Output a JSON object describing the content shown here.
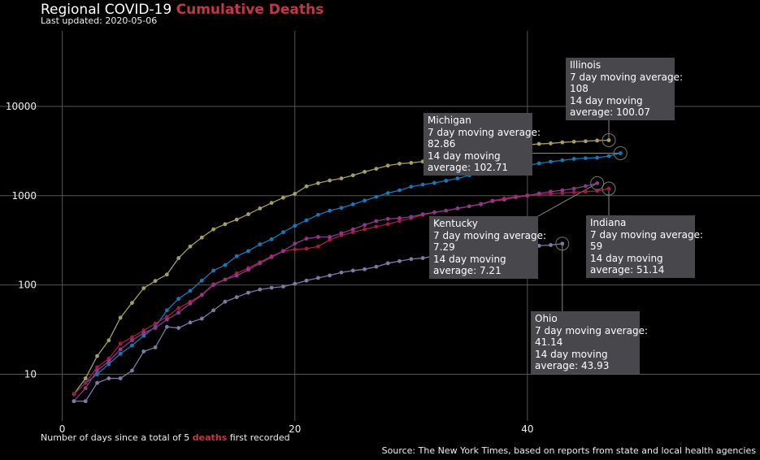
{
  "title": {
    "prefix": "Regional  COVID-19",
    "accent": "Cumulative Deaths"
  },
  "subtitle": "Last updated: 2020-05-06",
  "x_caption": {
    "before": "Number of days since a total of 5 ",
    "accent": "deaths",
    "after": " first recorded"
  },
  "source": "Source: The New York Times, based on reports from state and local health agencies",
  "colors": {
    "accent": "#c0394b",
    "Illinois": "#a3a065",
    "Michigan": "#1a77b5",
    "Indiana": "#a01c43",
    "Kentucky": "#8b3a87",
    "Ohio": "#7d7aa3"
  },
  "tooltips": [
    {
      "state": "Illinois",
      "lines": [
        "Illinois",
        "7 day moving average:",
        "108",
        "14 day moving",
        "average: 100.07"
      ]
    },
    {
      "state": "Michigan",
      "lines": [
        "Michigan",
        "7 day moving average:",
        "82.86",
        "14 day moving",
        "average: 102.71"
      ]
    },
    {
      "state": "Kentucky",
      "lines": [
        "Kentucky",
        "7 day moving average:",
        "7.29",
        "14 day moving",
        "average: 7.21"
      ]
    },
    {
      "state": "Indiana",
      "lines": [
        "Indiana",
        "7 day moving average:",
        "59",
        "14 day moving",
        "average: 51.14"
      ]
    },
    {
      "state": "Ohio",
      "lines": [
        "Ohio",
        "7 day moving average:",
        "41.14",
        "14 day moving",
        "average: 43.93"
      ]
    }
  ],
  "chart_data": {
    "type": "line",
    "title": "Regional  COVID-19  Cumulative Deaths",
    "xlabel": "Number of days since a total of 5 deaths first recorded",
    "ylabel": "",
    "y_scale": "log10",
    "xlim": [
      -2,
      60
    ],
    "ylim": [
      3,
      70000
    ],
    "x_ticks": [
      0,
      20,
      40
    ],
    "y_ticks": [
      10,
      100,
      1000,
      10000
    ],
    "grid": true,
    "series": [
      {
        "name": "Illinois",
        "x": [
          1,
          2,
          3,
          4,
          5,
          6,
          7,
          8,
          9,
          10,
          11,
          12,
          13,
          14,
          15,
          16,
          17,
          18,
          19,
          20,
          21,
          22,
          23,
          24,
          25,
          26,
          27,
          28,
          29,
          30,
          31,
          32,
          33,
          34,
          35,
          36,
          37,
          38,
          39,
          40,
          41,
          42,
          43,
          44,
          45,
          46,
          47
        ],
        "values": [
          6,
          9,
          16,
          24,
          43,
          63,
          92,
          111,
          131,
          200,
          270,
          340,
          420,
          480,
          540,
          620,
          720,
          830,
          950,
          1050,
          1270,
          1380,
          1480,
          1560,
          1690,
          1850,
          2000,
          2170,
          2280,
          2330,
          2410,
          2470,
          2620,
          2800,
          2950,
          3100,
          3250,
          3400,
          3550,
          3700,
          3800,
          3850,
          3950,
          4020,
          4070,
          4140,
          4180
        ]
      },
      {
        "name": "Michigan",
        "x": [
          1,
          2,
          3,
          4,
          5,
          6,
          7,
          8,
          9,
          10,
          11,
          12,
          13,
          14,
          15,
          16,
          17,
          18,
          19,
          20,
          21,
          22,
          23,
          24,
          25,
          26,
          27,
          28,
          29,
          30,
          31,
          32,
          33,
          34,
          35,
          36,
          37,
          38,
          39,
          40,
          41,
          42,
          43,
          44,
          45,
          46,
          47,
          48
        ],
        "values": [
          6,
          8,
          10,
          13,
          17,
          21,
          27,
          34,
          52,
          70,
          86,
          112,
          145,
          167,
          210,
          240,
          285,
          325,
          390,
          460,
          530,
          610,
          680,
          730,
          800,
          880,
          970,
          1070,
          1150,
          1260,
          1330,
          1390,
          1470,
          1560,
          1690,
          1770,
          1890,
          1990,
          2080,
          2180,
          2300,
          2400,
          2490,
          2580,
          2630,
          2660,
          2780,
          2990
        ]
      },
      {
        "name": "Indiana",
        "x": [
          1,
          2,
          3,
          4,
          5,
          6,
          7,
          8,
          9,
          10,
          11,
          12,
          13,
          14,
          15,
          16,
          17,
          18,
          19,
          20,
          21,
          22,
          23,
          24,
          25,
          26,
          27,
          28,
          29,
          30,
          31,
          32,
          33,
          34,
          35,
          36,
          37,
          38,
          39,
          40,
          41,
          42,
          43,
          44,
          45,
          46,
          47
        ],
        "values": [
          6,
          8,
          12,
          15,
          22,
          26,
          31,
          37,
          44,
          55,
          65,
          78,
          102,
          115,
          135,
          155,
          180,
          210,
          240,
          250,
          255,
          270,
          320,
          360,
          390,
          420,
          450,
          480,
          520,
          560,
          610,
          650,
          680,
          720,
          760,
          810,
          880,
          930,
          980,
          1010,
          1030,
          1050,
          1070,
          1090,
          1110,
          1130,
          1200
        ]
      },
      {
        "name": "Kentucky",
        "x": [
          1,
          2,
          3,
          4,
          5,
          6,
          7,
          8,
          9,
          10,
          11,
          12,
          13,
          14,
          15,
          16,
          17,
          18,
          19,
          20,
          21,
          22,
          23,
          24,
          25,
          26,
          27,
          28,
          29,
          30,
          31,
          32,
          33,
          34,
          35,
          36,
          37,
          38,
          39,
          40,
          41,
          42,
          43,
          44,
          45,
          46
        ],
        "values": [
          5,
          7,
          11,
          14,
          19,
          24,
          29,
          33,
          41,
          49,
          62,
          77,
          100,
          115,
          127,
          148,
          175,
          205,
          240,
          290,
          330,
          345,
          345,
          380,
          420,
          470,
          520,
          550,
          560,
          580,
          620,
          650,
          680,
          720,
          760,
          800,
          870,
          900,
          960,
          1000,
          1060,
          1110,
          1150,
          1200,
          1280,
          1380
        ]
      },
      {
        "name": "Ohio",
        "x": [
          1,
          2,
          3,
          4,
          5,
          6,
          7,
          8,
          9,
          10,
          11,
          12,
          13,
          14,
          15,
          16,
          17,
          18,
          19,
          20,
          21,
          22,
          23,
          24,
          25,
          26,
          27,
          28,
          29,
          30,
          31,
          32,
          33,
          34,
          35,
          36,
          37,
          38,
          39,
          40,
          41,
          42,
          43
        ],
        "values": [
          5,
          5,
          8,
          9,
          9,
          11,
          18,
          20,
          34,
          33,
          38,
          42,
          52,
          65,
          73,
          82,
          89,
          93,
          96,
          103,
          112,
          120,
          128,
          138,
          145,
          150,
          160,
          175,
          185,
          195,
          200,
          210,
          220,
          225,
          230,
          240,
          245,
          255,
          260,
          270,
          275,
          280,
          290
        ]
      }
    ]
  }
}
